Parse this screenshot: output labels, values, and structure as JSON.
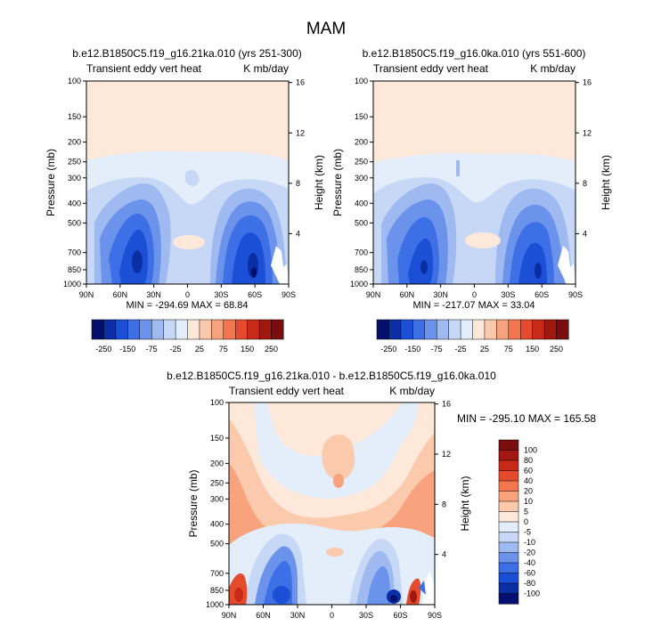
{
  "figure_title": "MAM",
  "colors": {
    "blues": [
      "#05106e",
      "#0a2fa5",
      "#1a4fd6",
      "#3d6fe6",
      "#6b93ec",
      "#9fb9f1",
      "#c6d8f6",
      "#e4eefa"
    ],
    "oranges": [
      "#fde8da",
      "#fbc9ab",
      "#f8a27e",
      "#f2774f",
      "#e44b2c",
      "#c82a1a",
      "#a11712",
      "#7a0d0e"
    ]
  },
  "chart_data": [
    {
      "type": "heatmap",
      "title": "b.e12.B1850C5.f19_g16.21ka.010 (yrs 251-300)",
      "left_label": "Transient eddy vert heat",
      "right_label": "K mb/day",
      "xlabel": "",
      "ylabel": "Pressure (mb)",
      "y2label": "Height (km)",
      "xticks": [
        "90N",
        "60N",
        "30N",
        "0",
        "30S",
        "60S",
        "90S"
      ],
      "yticks": [
        "100",
        "150",
        "200",
        "250",
        "300",
        "400",
        "500",
        "700",
        "850",
        "1000"
      ],
      "y2ticks": [
        "16",
        "12",
        "8",
        "4"
      ],
      "stats": "MIN = -294.69   MAX = 68.84",
      "min": -294.69,
      "max": 68.84,
      "colorbar": {
        "levels": [
          -275,
          -250,
          -200,
          -150,
          -100,
          -75,
          -50,
          -25,
          0,
          25,
          50,
          75,
          100,
          150,
          200,
          250,
          275
        ],
        "labels": [
          "-250",
          "-150",
          "-75",
          "-25",
          "25",
          "75",
          "150",
          "250"
        ]
      }
    },
    {
      "type": "heatmap",
      "title": "b.e12.B1850C5.f19_g16.0ka.010 (yrs 551-600)",
      "left_label": "Transient eddy vert heat",
      "right_label": "K mb/day",
      "xlabel": "",
      "ylabel": "Pressure (mb)",
      "y2label": "Height (km)",
      "xticks": [
        "90N",
        "60N",
        "30N",
        "0",
        "30S",
        "60S",
        "90S"
      ],
      "yticks": [
        "100",
        "150",
        "200",
        "250",
        "300",
        "400",
        "500",
        "700",
        "850",
        "1000"
      ],
      "y2ticks": [
        "16",
        "12",
        "8",
        "4"
      ],
      "stats": "MIN = -217.07   MAX = 33.04",
      "min": -217.07,
      "max": 33.04,
      "colorbar": {
        "labels": [
          "-250",
          "-150",
          "-75",
          "-25",
          "25",
          "75",
          "150",
          "250"
        ]
      }
    },
    {
      "type": "heatmap",
      "title": "b.e12.B1850C5.f19_g16.21ka.010 - b.e12.B1850C5.f19_g16.0ka.010",
      "left_label": "Transient eddy vert heat",
      "right_label": "K mb/day",
      "xlabel": "",
      "ylabel": "Pressure (mb)",
      "y2label": "Height (km)",
      "xticks": [
        "90N",
        "60N",
        "30N",
        "0",
        "30S",
        "60S",
        "90S"
      ],
      "yticks": [
        "100",
        "150",
        "200",
        "250",
        "300",
        "400",
        "500",
        "700",
        "850",
        "1000"
      ],
      "y2ticks": [
        "16",
        "12",
        "8",
        "4"
      ],
      "stats": "MIN = -295.10   MAX = 165.58",
      "min": -295.1,
      "max": 165.58,
      "colorbar": {
        "labels": [
          "100",
          "80",
          "60",
          "40",
          "20",
          "10",
          "5",
          "0",
          "-5",
          "-10",
          "-20",
          "-40",
          "-60",
          "-80",
          "-100"
        ]
      }
    }
  ]
}
